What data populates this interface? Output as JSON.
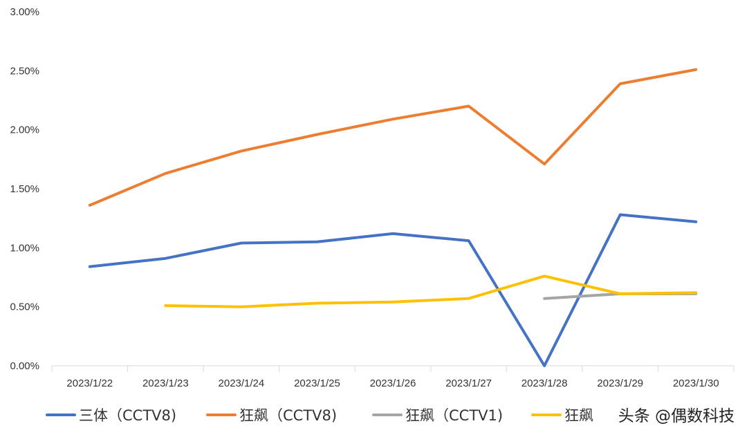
{
  "chart_data": {
    "type": "line",
    "categories": [
      "2023/1/22",
      "2023/1/23",
      "2023/1/24",
      "2023/1/25",
      "2023/1/26",
      "2023/1/27",
      "2023/1/28",
      "2023/1/29",
      "2023/1/30"
    ],
    "y_ticks": [
      "0.00%",
      "0.50%",
      "1.00%",
      "1.50%",
      "2.00%",
      "2.50%",
      "3.00%"
    ],
    "ylim": [
      0,
      3.0
    ],
    "y_unit": "%",
    "grid": false,
    "legend_position": "bottom",
    "series": [
      {
        "name": "三体（CCTV8)",
        "color": "#4472C4",
        "values": [
          0.84,
          0.91,
          1.04,
          1.05,
          1.12,
          1.06,
          0.0,
          1.28,
          1.22
        ]
      },
      {
        "name": "狂飙（CCTV8)",
        "color": "#ED7D31",
        "values": [
          1.36,
          1.63,
          1.82,
          1.96,
          2.09,
          2.2,
          1.71,
          2.39,
          2.51
        ]
      },
      {
        "name": "狂飙（CCTV1)",
        "color": "#A5A5A5",
        "values": [
          null,
          null,
          null,
          null,
          null,
          null,
          0.57,
          0.61,
          0.61
        ]
      },
      {
        "name": "狂飙",
        "color": "#FFC000",
        "values": [
          null,
          0.51,
          0.5,
          0.53,
          0.54,
          0.57,
          0.76,
          0.61,
          0.62
        ]
      }
    ]
  },
  "watermark": "头条 @偶数科技"
}
